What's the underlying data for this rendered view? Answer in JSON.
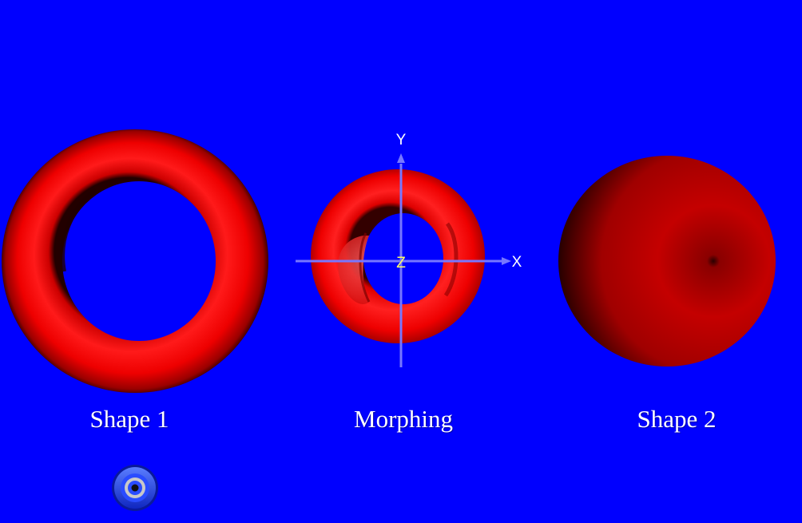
{
  "labels": {
    "shape1": "Shape 1",
    "morphing": "Morphing",
    "shape2": "Shape 2"
  },
  "axes": {
    "x": "X",
    "y": "Y",
    "z": "Z"
  },
  "colors": {
    "background": "#0000ff",
    "shape": "#ff0000",
    "axis": "#7777ff",
    "z_label": "#ffff66"
  },
  "controls": {
    "select_button_icon": "target-ring-icon"
  }
}
